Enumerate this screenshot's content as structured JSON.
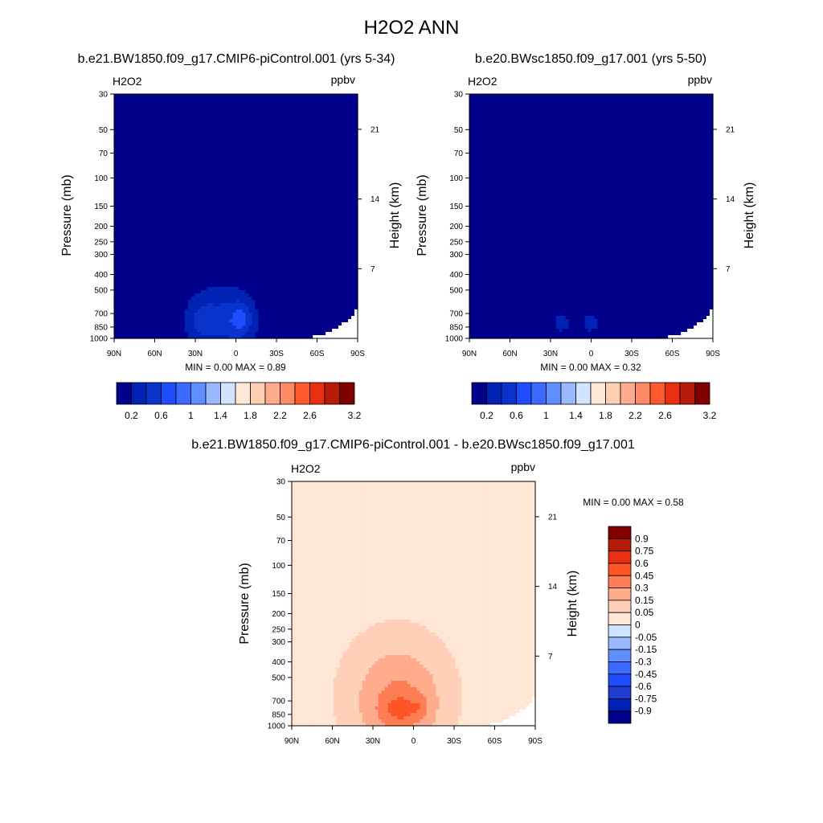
{
  "figure": {
    "title": "H2O2 ANN"
  },
  "palette": {
    "abs_colors": [
      "#00008b",
      "#0022b5",
      "#0a33cc",
      "#1e4cff",
      "#3c6aff",
      "#6090ff",
      "#9ab8ff",
      "#d2e4ff",
      "#ffe8d6",
      "#ffcfb3",
      "#ffac8e",
      "#ff8a66",
      "#ff5a2e",
      "#e83010",
      "#b81a0a",
      "#800000"
    ],
    "diff_colors": [
      "#00008b",
      "#0022b5",
      "#1e3ccf",
      "#1e4cff",
      "#3c6aff",
      "#6090ff",
      "#9ab8ff",
      "#cfe2ff",
      "#ffe6d5",
      "#ffcfb7",
      "#ffab8c",
      "#ff7d55",
      "#ff5426",
      "#e83010",
      "#b81a0a",
      "#800000"
    ],
    "missing_color": "#ffffff"
  },
  "panels": [
    {
      "title": "b.e21.BW1850.f09_g17.CMIP6-piControl.001 (yrs 5-34)",
      "variable": "H2O2",
      "units": "ppbv",
      "stats": "MIN =   0.00  MAX =   0.89"
    },
    {
      "title": "b.e20.BWsc1850.f09_g17.001 (yrs 5-50)",
      "variable": "H2O2",
      "units": "ppbv",
      "stats": "MIN =   0.00  MAX =   0.32"
    },
    {
      "title": "b.e21.BW1850.f09_g17.CMIP6-piControl.001 - b.e20.BWsc1850.f09_g17.001",
      "variable": "H2O2",
      "units": "ppbv",
      "stats": "MIN =   0.00  MAX =   0.58"
    }
  ],
  "chart_data": [
    {
      "type": "heatmap",
      "title": "b.e21.BW1850.f09_g17.CMIP6-piControl.001 (yrs 5-34)",
      "variable": "H2O2",
      "units": "ppbv",
      "xlabel": "",
      "ylabel": "Pressure (mb)",
      "y2label": "Height (km)",
      "x_ticks": [
        {
          "value": 90,
          "label": "90N"
        },
        {
          "value": 60,
          "label": "60N"
        },
        {
          "value": 30,
          "label": "30N"
        },
        {
          "value": 0,
          "label": "0"
        },
        {
          "value": -30,
          "label": "30S"
        },
        {
          "value": -60,
          "label": "60S"
        },
        {
          "value": -90,
          "label": "90S"
        }
      ],
      "y_ticks": [
        30,
        50,
        70,
        100,
        150,
        200,
        250,
        300,
        400,
        500,
        700,
        850,
        1000
      ],
      "y2_ticks": [
        {
          "value": 7,
          "label": "7"
        },
        {
          "value": 14,
          "label": "14"
        },
        {
          "value": 21,
          "label": "21"
        }
      ],
      "xlim": [
        90,
        -90
      ],
      "ylim": [
        1000,
        30
      ],
      "y_scale": "log",
      "levels": [
        0.2,
        0.4,
        0.6,
        0.8,
        1,
        1.2,
        1.4,
        1.6,
        1.8,
        2,
        2.2,
        2.4,
        2.6,
        2.8,
        3,
        3.2
      ],
      "colorbar_labels": [
        "0.2",
        "0.6",
        "1",
        "1.4",
        "1.8",
        "2.2",
        "2.6",
        "3.2"
      ],
      "colorbar_orientation": "horizontal",
      "min": 0.0,
      "max": 0.89,
      "field": [
        {
          "lat": 10,
          "p": 750,
          "amp": 0.35,
          "slat": 28,
          "slogp": 0.25
        },
        {
          "lat": 25,
          "p": 780,
          "amp": 0.25,
          "slat": 12,
          "slogp": 0.14
        },
        {
          "lat": 0,
          "p": 780,
          "amp": 0.2,
          "slat": 12,
          "slogp": 0.14
        },
        {
          "lat": -5,
          "p": 760,
          "amp": 0.25,
          "slat": 8,
          "slogp": 0.1
        }
      ],
      "missing_region": {
        "lat_start": -45,
        "lat_end": -90,
        "p_top_at_lat_end": 650
      }
    },
    {
      "type": "heatmap",
      "title": "b.e20.BWsc1850.f09_g17.001 (yrs 5-50)",
      "variable": "H2O2",
      "units": "ppbv",
      "xlabel": "",
      "ylabel": "Pressure (mb)",
      "y2label": "Height (km)",
      "x_ticks": [
        {
          "value": 90,
          "label": "90N"
        },
        {
          "value": 60,
          "label": "60N"
        },
        {
          "value": 30,
          "label": "30N"
        },
        {
          "value": 0,
          "label": "0"
        },
        {
          "value": -30,
          "label": "30S"
        },
        {
          "value": -60,
          "label": "60S"
        },
        {
          "value": -90,
          "label": "90S"
        }
      ],
      "y_ticks": [
        30,
        50,
        70,
        100,
        150,
        200,
        250,
        300,
        400,
        500,
        700,
        850,
        1000
      ],
      "y2_ticks": [
        {
          "value": 7,
          "label": "7"
        },
        {
          "value": 14,
          "label": "14"
        },
        {
          "value": 21,
          "label": "21"
        }
      ],
      "xlim": [
        90,
        -90
      ],
      "ylim": [
        1000,
        30
      ],
      "y_scale": "log",
      "levels": [
        0.2,
        0.4,
        0.6,
        0.8,
        1,
        1.2,
        1.4,
        1.6,
        1.8,
        2,
        2.2,
        2.4,
        2.6,
        2.8,
        3,
        3.2
      ],
      "colorbar_labels": [
        "0.2",
        "0.6",
        "1",
        "1.4",
        "1.8",
        "2.2",
        "2.6",
        "3.2"
      ],
      "colorbar_orientation": "horizontal",
      "min": 0.0,
      "max": 0.32,
      "field": [
        {
          "lat": 22,
          "p": 800,
          "amp": 0.25,
          "slat": 10,
          "slogp": 0.1
        },
        {
          "lat": 0,
          "p": 800,
          "amp": 0.25,
          "slat": 10,
          "slogp": 0.1
        }
      ],
      "missing_region": {
        "lat_start": -45,
        "lat_end": -90,
        "p_top_at_lat_end": 650
      }
    },
    {
      "type": "heatmap",
      "title": "b.e21.BW1850.f09_g17.CMIP6-piControl.001 - b.e20.BWsc1850.f09_g17.001",
      "variable": "H2O2",
      "units": "ppbv",
      "xlabel": "",
      "ylabel": "Pressure (mb)",
      "y2label": "Height (km)",
      "x_ticks": [
        {
          "value": 90,
          "label": "90N"
        },
        {
          "value": 60,
          "label": "60N"
        },
        {
          "value": 30,
          "label": "30N"
        },
        {
          "value": 0,
          "label": "0"
        },
        {
          "value": -30,
          "label": "30S"
        },
        {
          "value": -60,
          "label": "60S"
        },
        {
          "value": -90,
          "label": "90S"
        }
      ],
      "y_ticks": [
        30,
        50,
        70,
        100,
        150,
        200,
        250,
        300,
        400,
        500,
        700,
        850,
        1000
      ],
      "y2_ticks": [
        {
          "value": 7,
          "label": "7"
        },
        {
          "value": 14,
          "label": "14"
        },
        {
          "value": 21,
          "label": "21"
        }
      ],
      "xlim": [
        90,
        -90
      ],
      "ylim": [
        1000,
        30
      ],
      "y_scale": "log",
      "levels": [
        -0.9,
        -0.75,
        -0.6,
        -0.45,
        -0.3,
        -0.15,
        -0.05,
        0,
        0.05,
        0.15,
        0.3,
        0.45,
        0.6,
        0.75,
        0.9
      ],
      "colorbar_labels": [
        "0.9",
        "0.75",
        "0.6",
        "0.45",
        "0.3",
        "0.15",
        "0.05",
        "0",
        "-0.05",
        "-0.15",
        "-0.3",
        "-0.45",
        "-0.6",
        "-0.75",
        "-0.9"
      ],
      "colorbar_orientation": "vertical",
      "min": 0.0,
      "max": 0.58,
      "field": [
        {
          "lat": 12,
          "p": 650,
          "amp": 0.2,
          "slat": 40,
          "slogp": 0.4
        },
        {
          "lat": 10,
          "p": 750,
          "amp": 0.17,
          "slat": 22,
          "slogp": 0.22
        },
        {
          "lat": 10,
          "p": 800,
          "amp": 0.16,
          "slat": 15,
          "slogp": 0.1
        },
        {
          "lat": -5,
          "p": 760,
          "amp": 0.12,
          "slat": 6,
          "slogp": 0.07
        }
      ],
      "missing_region": {
        "lat_start": -45,
        "lat_end": -90,
        "p_top_at_lat_end": 650
      }
    }
  ]
}
